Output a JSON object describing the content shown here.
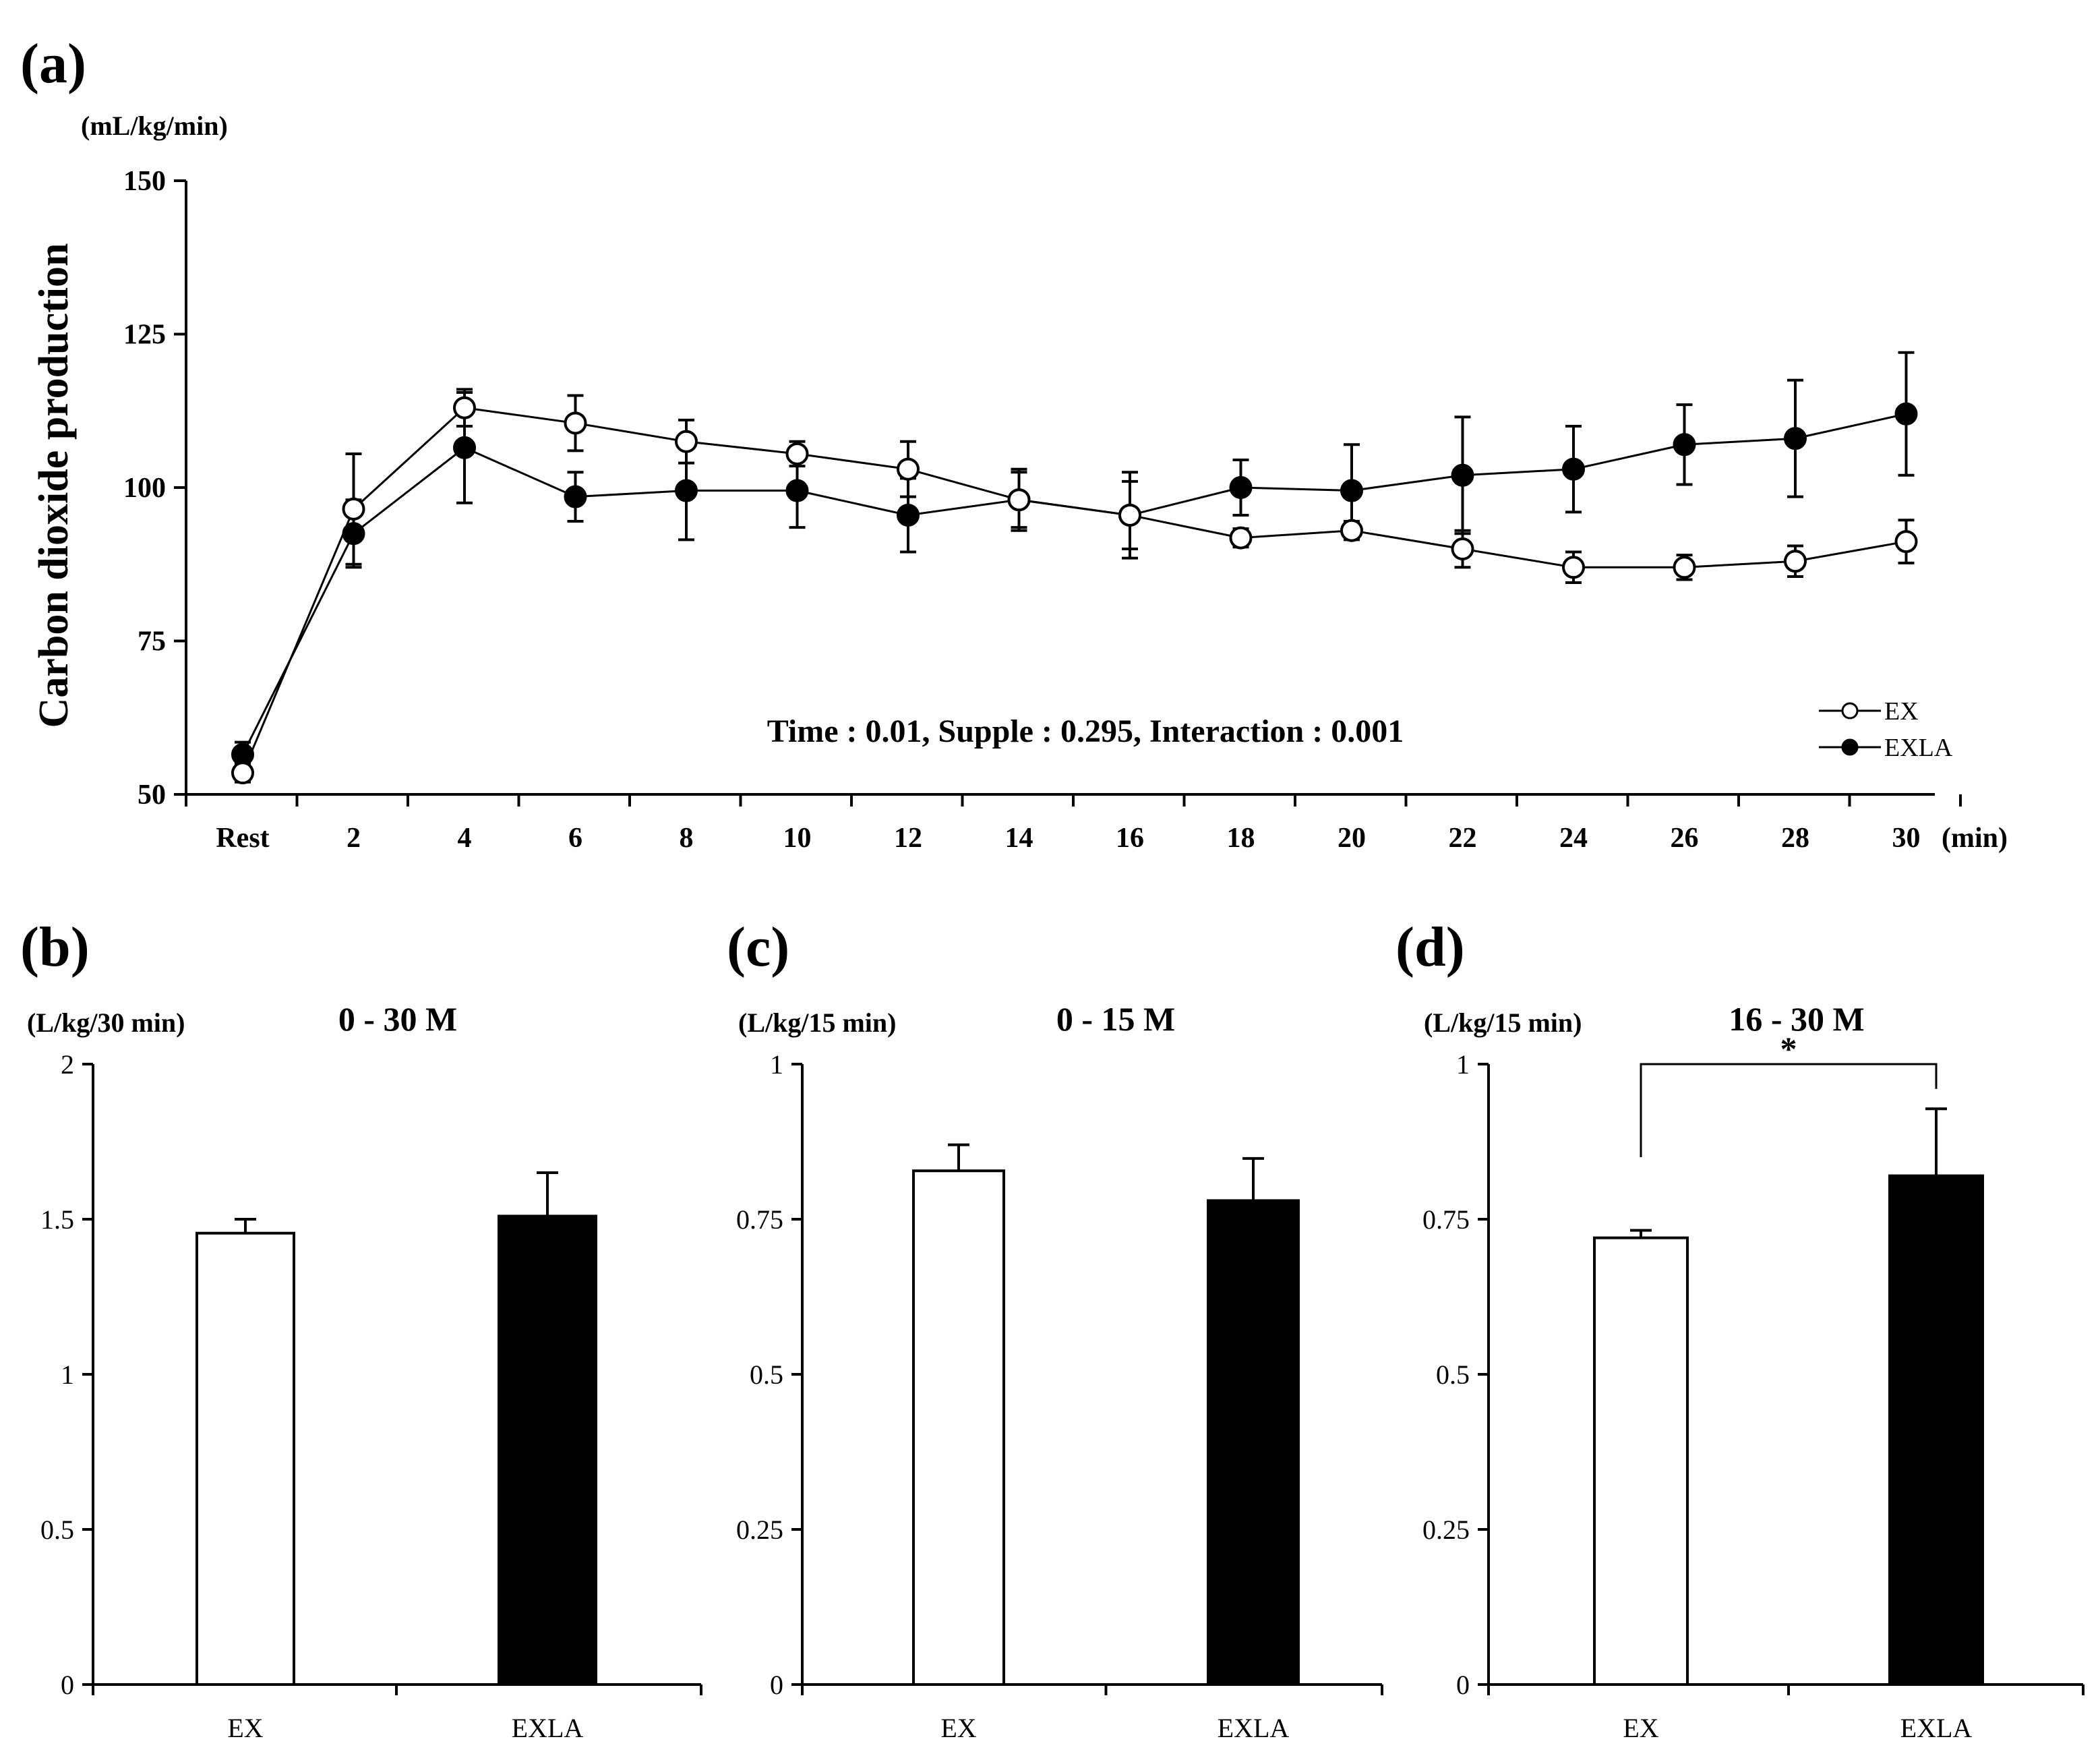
{
  "chart_data": [
    {
      "id": "a",
      "panel_label": "(a)",
      "type": "line",
      "unit": "(mL/kg/min)",
      "ylabel": "Carbon dioxide production",
      "xunit": "(min)",
      "ylim": [
        50,
        150
      ],
      "yticks": [
        50,
        75,
        100,
        125,
        150
      ],
      "categories": [
        "Rest",
        "2",
        "4",
        "6",
        "8",
        "10",
        "12",
        "14",
        "16",
        "18",
        "20",
        "22",
        "24",
        "26",
        "28",
        "30"
      ],
      "annotation": "Time : 0.01,  Supple : 0.295,  Interaction : 0.001",
      "series": [
        {
          "name": "EX",
          "marker": "open",
          "values": [
            53.5,
            96.5,
            113,
            110.5,
            107.5,
            105.5,
            103,
            98,
            95.5,
            91.8,
            93,
            90,
            87,
            87,
            88,
            91.2
          ],
          "errors": [
            1.5,
            9,
            3,
            4.5,
            3.5,
            2,
            4.5,
            4.5,
            5.5,
            1.5,
            1.5,
            3,
            2.5,
            2,
            2.5,
            3.5
          ]
        },
        {
          "name": "EXLA",
          "marker": "filled",
          "values": [
            56.5,
            92.5,
            106.5,
            98.5,
            99.5,
            99.5,
            95.5,
            98,
            95.5,
            100,
            99.5,
            102,
            103,
            107,
            108,
            112
          ],
          "errors": [
            2,
            5.5,
            9,
            4,
            8,
            6,
            6,
            5,
            7,
            4.5,
            7.5,
            9.5,
            7,
            6.5,
            9.5,
            10
          ]
        }
      ]
    },
    {
      "id": "b",
      "panel_label": "(b)",
      "type": "bar",
      "title": "0 - 30 M",
      "unit": "(L/kg/30 min)",
      "ylim": [
        0,
        2
      ],
      "yticks": [
        "0",
        "0.5",
        "1",
        "1.5",
        "2"
      ],
      "categories": [
        "EX",
        "EXLA"
      ],
      "values": [
        1.455,
        1.51
      ],
      "errors": [
        0.045,
        0.14
      ],
      "colors": [
        "#ffffff",
        "#000000"
      ]
    },
    {
      "id": "c",
      "panel_label": "(c)",
      "type": "bar",
      "title": "0 - 15 M",
      "unit": "(L/kg/15 min)",
      "ylim": [
        0,
        1
      ],
      "yticks": [
        "0",
        "0.25",
        "0.5",
        "0.75",
        "1"
      ],
      "categories": [
        "EX",
        "EXLA"
      ],
      "values": [
        0.828,
        0.78
      ],
      "errors": [
        0.042,
        0.068
      ],
      "colors": [
        "#ffffff",
        "#000000"
      ]
    },
    {
      "id": "d",
      "panel_label": "(d)",
      "type": "bar",
      "title": "16 - 30 M",
      "unit": "(L/kg/15 min)",
      "ylim": [
        0,
        1
      ],
      "yticks": [
        "0",
        "0.25",
        "0.5",
        "0.75",
        "1"
      ],
      "categories": [
        "EX",
        "EXLA"
      ],
      "values": [
        0.72,
        0.82
      ],
      "errors": [
        0.012,
        0.108
      ],
      "colors": [
        "#ffffff",
        "#000000"
      ],
      "significance": "*"
    }
  ]
}
